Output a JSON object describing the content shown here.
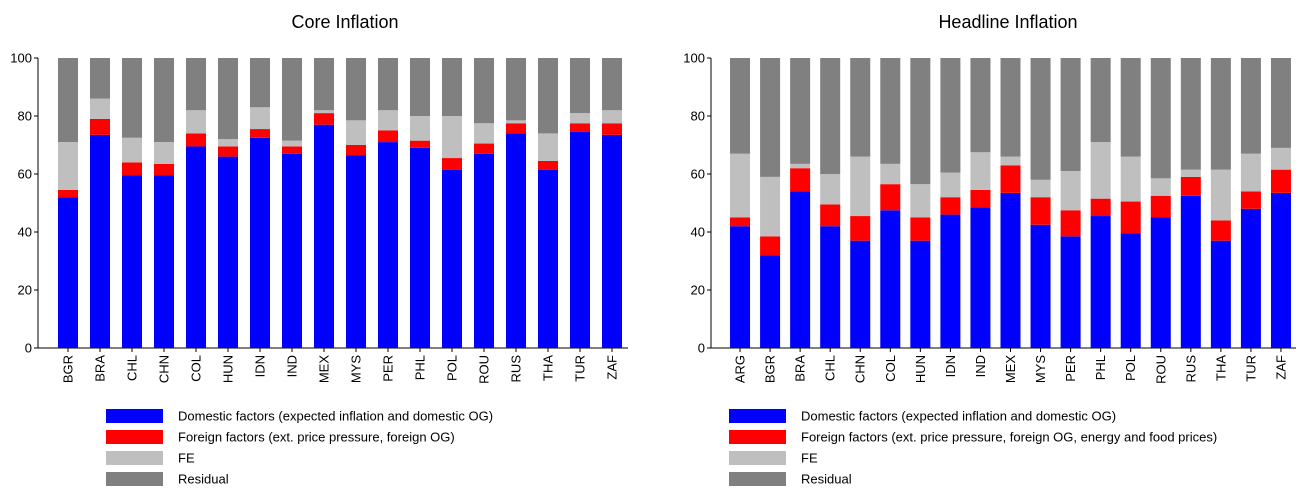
{
  "chart_data": [
    {
      "type": "bar",
      "stacked": true,
      "title": "Core Inflation",
      "xlabel": "",
      "ylabel": "",
      "ylim": [
        0,
        100
      ],
      "yticks": [
        "0",
        "20",
        "40",
        "60",
        "80",
        "100"
      ],
      "grid": false,
      "legend_position": "bottom",
      "categories": [
        "BGR",
        "BRA",
        "CHL",
        "CHN",
        "COL",
        "HUN",
        "IDN",
        "IND",
        "MEX",
        "MYS",
        "PER",
        "PHL",
        "POL",
        "ROU",
        "RUS",
        "THA",
        "TUR",
        "ZAF"
      ],
      "series": [
        {
          "name": "Domestic factors (expected inflation and domestic OG)",
          "color": "#0000ff",
          "values": [
            52,
            73.5,
            59.5,
            59.5,
            69.5,
            66,
            72.5,
            67,
            77,
            66.5,
            71,
            69,
            61.5,
            67,
            74,
            61.5,
            74.5,
            73.5
          ]
        },
        {
          "name": "Foreign factors (ext. price pressure, foreign OG)",
          "color": "#ff0000",
          "values": [
            2.5,
            5.5,
            4.5,
            4,
            4.5,
            3.5,
            3,
            2.5,
            4,
            3.5,
            4,
            2.5,
            4,
            3.5,
            3.5,
            3,
            3,
            4
          ]
        },
        {
          "name": "FE",
          "color": "#bfbfbf",
          "values": [
            16.5,
            7,
            8.5,
            7.5,
            8,
            2.5,
            7.5,
            2,
            1,
            8.5,
            7,
            8.5,
            14.5,
            7,
            1,
            9.5,
            3.5,
            4.5
          ]
        },
        {
          "name": "Residual",
          "color": "#808080",
          "values": [
            29,
            14,
            27.5,
            29,
            18,
            28,
            17,
            28.5,
            18,
            21.5,
            18,
            20,
            20,
            22.5,
            21.5,
            26,
            19,
            18
          ]
        }
      ]
    },
    {
      "type": "bar",
      "stacked": true,
      "title": "Headline Inflation",
      "xlabel": "",
      "ylabel": "",
      "ylim": [
        0,
        100
      ],
      "yticks": [
        "0",
        "20",
        "40",
        "60",
        "80",
        "100"
      ],
      "grid": false,
      "legend_position": "bottom",
      "categories": [
        "ARG",
        "BGR",
        "BRA",
        "CHL",
        "CHN",
        "COL",
        "HUN",
        "IDN",
        "IND",
        "MEX",
        "MYS",
        "PER",
        "PHL",
        "POL",
        "ROU",
        "RUS",
        "THA",
        "TUR",
        "ZAF"
      ],
      "series": [
        {
          "name": "Domestic factors (expected inflation and domestic OG)",
          "color": "#0000ff",
          "values": [
            42,
            32,
            54,
            42,
            37,
            47.5,
            37,
            46,
            48.5,
            53.5,
            42.5,
            38.5,
            45.5,
            39.5,
            45,
            52.5,
            37,
            48,
            53.5
          ]
        },
        {
          "name": "Foreign factors (ext. price pressure, foreign OG, energy and food prices)",
          "color": "#ff0000",
          "values": [
            3,
            6.5,
            8,
            7.5,
            8.5,
            9,
            8,
            6,
            6,
            9.5,
            9.5,
            9,
            6,
            11,
            7.5,
            6.5,
            7,
            6,
            8
          ]
        },
        {
          "name": "FE",
          "color": "#bfbfbf",
          "values": [
            22,
            20.5,
            1.5,
            10.5,
            20.5,
            7,
            11.5,
            8.5,
            13,
            3,
            6,
            13.5,
            19.5,
            15.5,
            6,
            2.5,
            17.5,
            13,
            7.5
          ]
        },
        {
          "name": "Residual",
          "color": "#808080",
          "values": [
            33,
            41,
            36.5,
            40,
            34,
            36.5,
            43.5,
            39.5,
            32.5,
            34,
            42,
            39,
            29,
            34,
            41.5,
            38.5,
            38.5,
            33,
            31
          ]
        }
      ]
    }
  ]
}
